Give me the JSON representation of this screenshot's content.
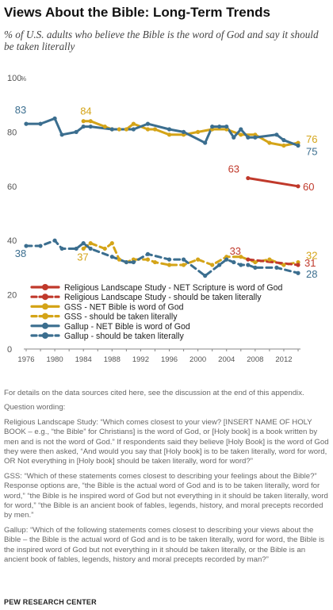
{
  "header": {
    "title": "Views About the Bible: Long-Term Trends",
    "subtitle": "% of U.S. adults who believe the Bible is the word of God and say it should be taken literally"
  },
  "notes": {
    "data_sources": "For details on the data sources cited here, see the discussion at the end of this appendix.",
    "question_wording_label": "Question wording:",
    "rls": "Religious Landscape Study: “Which comes closest to your view? [INSERT NAME OF HOLY BOOK – e.g., “the Bible” for Christians] is the word of God, or [Holy book] is a book written by men and is not the word of God.” If respondents said they believe [Holy Book] is the word of God they were then asked, “And would you say that [Holy book] is to be taken literally, word for word, OR Not everything in [Holy book] should be taken literally, word for word?”",
    "gss": "GSS: “Which of these statements comes closest to describing your feelings about the Bible?” Response options are, “the Bible is the actual word of God and is to be taken literally, word for word,” “the Bible is he inspired word of God but not everything in it should be taken literally, word for word,” “the Bible is an ancient book of fables, legends, history, and moral precepts recorded by men.”",
    "gallup": "Gallup: “Which of the following statements comes closest to describing your views about the Bible – the Bible is the actual word of God and is to be taken literally, word for word, the Bible is the inspired word of God but not everything in it should be taken literally, or the Bible is an ancient book of fables, legends, history and moral precepts recorded by man?”"
  },
  "footer": {
    "source": "PEW RESEARCH CENTER"
  },
  "chart_data": {
    "type": "line",
    "title": "Views About the Bible: Long-Term Trends",
    "subtitle": "% of U.S. adults who believe the Bible is the word of God and say it should be taken literally",
    "xlabel": "",
    "ylabel": "",
    "xlim": [
      1976,
      2014
    ],
    "ylim": [
      0,
      100
    ],
    "x_ticks": [
      1976,
      1980,
      1984,
      1988,
      1992,
      1996,
      2000,
      2004,
      2008,
      2012
    ],
    "y_ticks": [
      0,
      20,
      40,
      60,
      80,
      100
    ],
    "y_tick_labels": [
      "0",
      "20",
      "40",
      "60",
      "80",
      "100"
    ],
    "y_unit": "%",
    "grid": false,
    "legend_position": "inside-lower-left",
    "series": [
      {
        "name": "Religious Landscape Study - NET Scripture is word of God",
        "color": "#c0392b",
        "dashed": false,
        "points": [
          [
            2007,
            63
          ],
          [
            2014,
            60
          ]
        ],
        "labels": [
          {
            "x": 2007,
            "text": "63"
          },
          {
            "x": 2014,
            "text": "60"
          }
        ]
      },
      {
        "name": "Religious Landscape Study - should be taken literally",
        "color": "#c0392b",
        "dashed": true,
        "points": [
          [
            2007,
            33
          ],
          [
            2014,
            31
          ]
        ],
        "labels": [
          {
            "x": 2007,
            "text": "33"
          },
          {
            "x": 2014,
            "text": "31"
          }
        ]
      },
      {
        "name": "GSS - NET Bible is word of God",
        "color": "#d4a418",
        "dashed": false,
        "points": [
          [
            1984,
            84
          ],
          [
            1985,
            84
          ],
          [
            1987,
            82
          ],
          [
            1988,
            81
          ],
          [
            1989,
            81
          ],
          [
            1990,
            81
          ],
          [
            1991,
            83
          ],
          [
            1993,
            81
          ],
          [
            1994,
            81
          ],
          [
            1996,
            79
          ],
          [
            1998,
            79
          ],
          [
            2000,
            80
          ],
          [
            2002,
            81
          ],
          [
            2004,
            81
          ],
          [
            2006,
            79
          ],
          [
            2008,
            79
          ],
          [
            2010,
            76
          ],
          [
            2012,
            75
          ],
          [
            2014,
            76
          ]
        ],
        "labels": [
          {
            "x": 1984,
            "text": "84"
          },
          {
            "x": 2014,
            "text": "76"
          }
        ]
      },
      {
        "name": "GSS - should be taken literally",
        "color": "#d4a418",
        "dashed": true,
        "points": [
          [
            1984,
            37
          ],
          [
            1985,
            39
          ],
          [
            1987,
            37
          ],
          [
            1988,
            39
          ],
          [
            1989,
            33
          ],
          [
            1990,
            32
          ],
          [
            1991,
            33
          ],
          [
            1993,
            33
          ],
          [
            1994,
            32
          ],
          [
            1996,
            31
          ],
          [
            1998,
            31
          ],
          [
            2000,
            33
          ],
          [
            2002,
            31
          ],
          [
            2004,
            34
          ],
          [
            2006,
            34
          ],
          [
            2008,
            32
          ],
          [
            2010,
            33
          ],
          [
            2012,
            31
          ],
          [
            2014,
            32
          ]
        ],
        "labels": [
          {
            "x": 1984,
            "text": "37"
          },
          {
            "x": 2014,
            "text": "32"
          }
        ]
      },
      {
        "name": "Gallup - NET Bible is word of God",
        "color": "#3b6e8f",
        "dashed": false,
        "points": [
          [
            1976,
            83
          ],
          [
            1978,
            83
          ],
          [
            1980,
            85
          ],
          [
            1981,
            79
          ],
          [
            1983,
            80
          ],
          [
            1984,
            82
          ],
          [
            1985,
            82
          ],
          [
            1988,
            81
          ],
          [
            1991,
            81
          ],
          [
            1993,
            83
          ],
          [
            1996,
            81
          ],
          [
            1998,
            80
          ],
          [
            2001,
            76
          ],
          [
            2002,
            82
          ],
          [
            2003,
            82
          ],
          [
            2004,
            82
          ],
          [
            2005,
            78
          ],
          [
            2006,
            81
          ],
          [
            2007,
            78
          ],
          [
            2008,
            78
          ],
          [
            2011,
            79
          ],
          [
            2012,
            77
          ],
          [
            2014,
            75
          ]
        ],
        "labels": [
          {
            "x": 1976,
            "text": "83"
          },
          {
            "x": 2014,
            "text": "75"
          }
        ]
      },
      {
        "name": "Gallup - should be taken literally",
        "color": "#3b6e8f",
        "dashed": true,
        "points": [
          [
            1976,
            38
          ],
          [
            1978,
            38
          ],
          [
            1980,
            40
          ],
          [
            1981,
            37
          ],
          [
            1983,
            37
          ],
          [
            1984,
            39
          ],
          [
            1985,
            37
          ],
          [
            1988,
            34
          ],
          [
            1990,
            32
          ],
          [
            1991,
            32
          ],
          [
            1993,
            35
          ],
          [
            1996,
            33
          ],
          [
            1998,
            33
          ],
          [
            2001,
            27
          ],
          [
            2003,
            31
          ],
          [
            2004,
            33
          ],
          [
            2005,
            32
          ],
          [
            2006,
            31
          ],
          [
            2007,
            31
          ],
          [
            2008,
            30
          ],
          [
            2011,
            30
          ],
          [
            2014,
            28
          ]
        ],
        "labels": [
          {
            "x": 1976,
            "text": "38"
          },
          {
            "x": 2014,
            "text": "28"
          }
        ]
      }
    ]
  }
}
